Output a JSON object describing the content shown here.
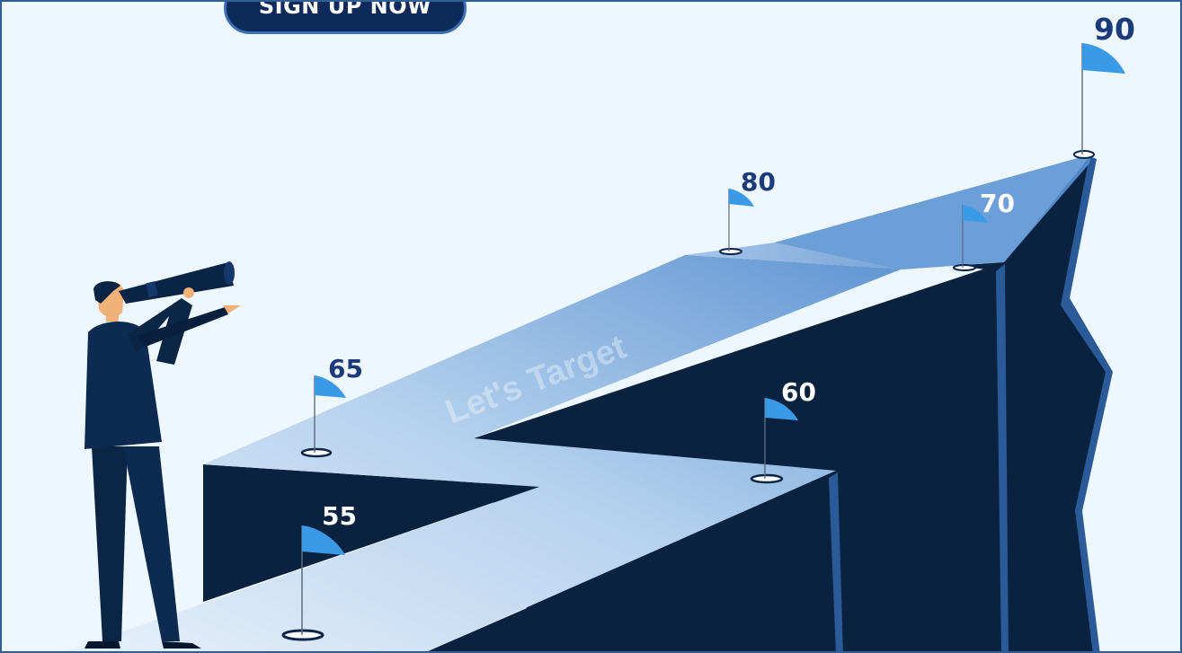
{
  "cta": {
    "label": "SIGN UP NOW"
  },
  "path": {
    "watermark": "Let's Target"
  },
  "milestones": {
    "m55": "55",
    "m60": "60",
    "m65": "65",
    "m70": "70",
    "m80": "80",
    "m90": "90"
  },
  "colors": {
    "background": "#eef7fe",
    "cliff_dark": "#08223f",
    "path_light": "#dbe9f7",
    "path_mid": "#7faee0",
    "flag_blue": "#3a9ae8",
    "number_dark": "#1b3a7a",
    "number_white": "#ffffff"
  }
}
